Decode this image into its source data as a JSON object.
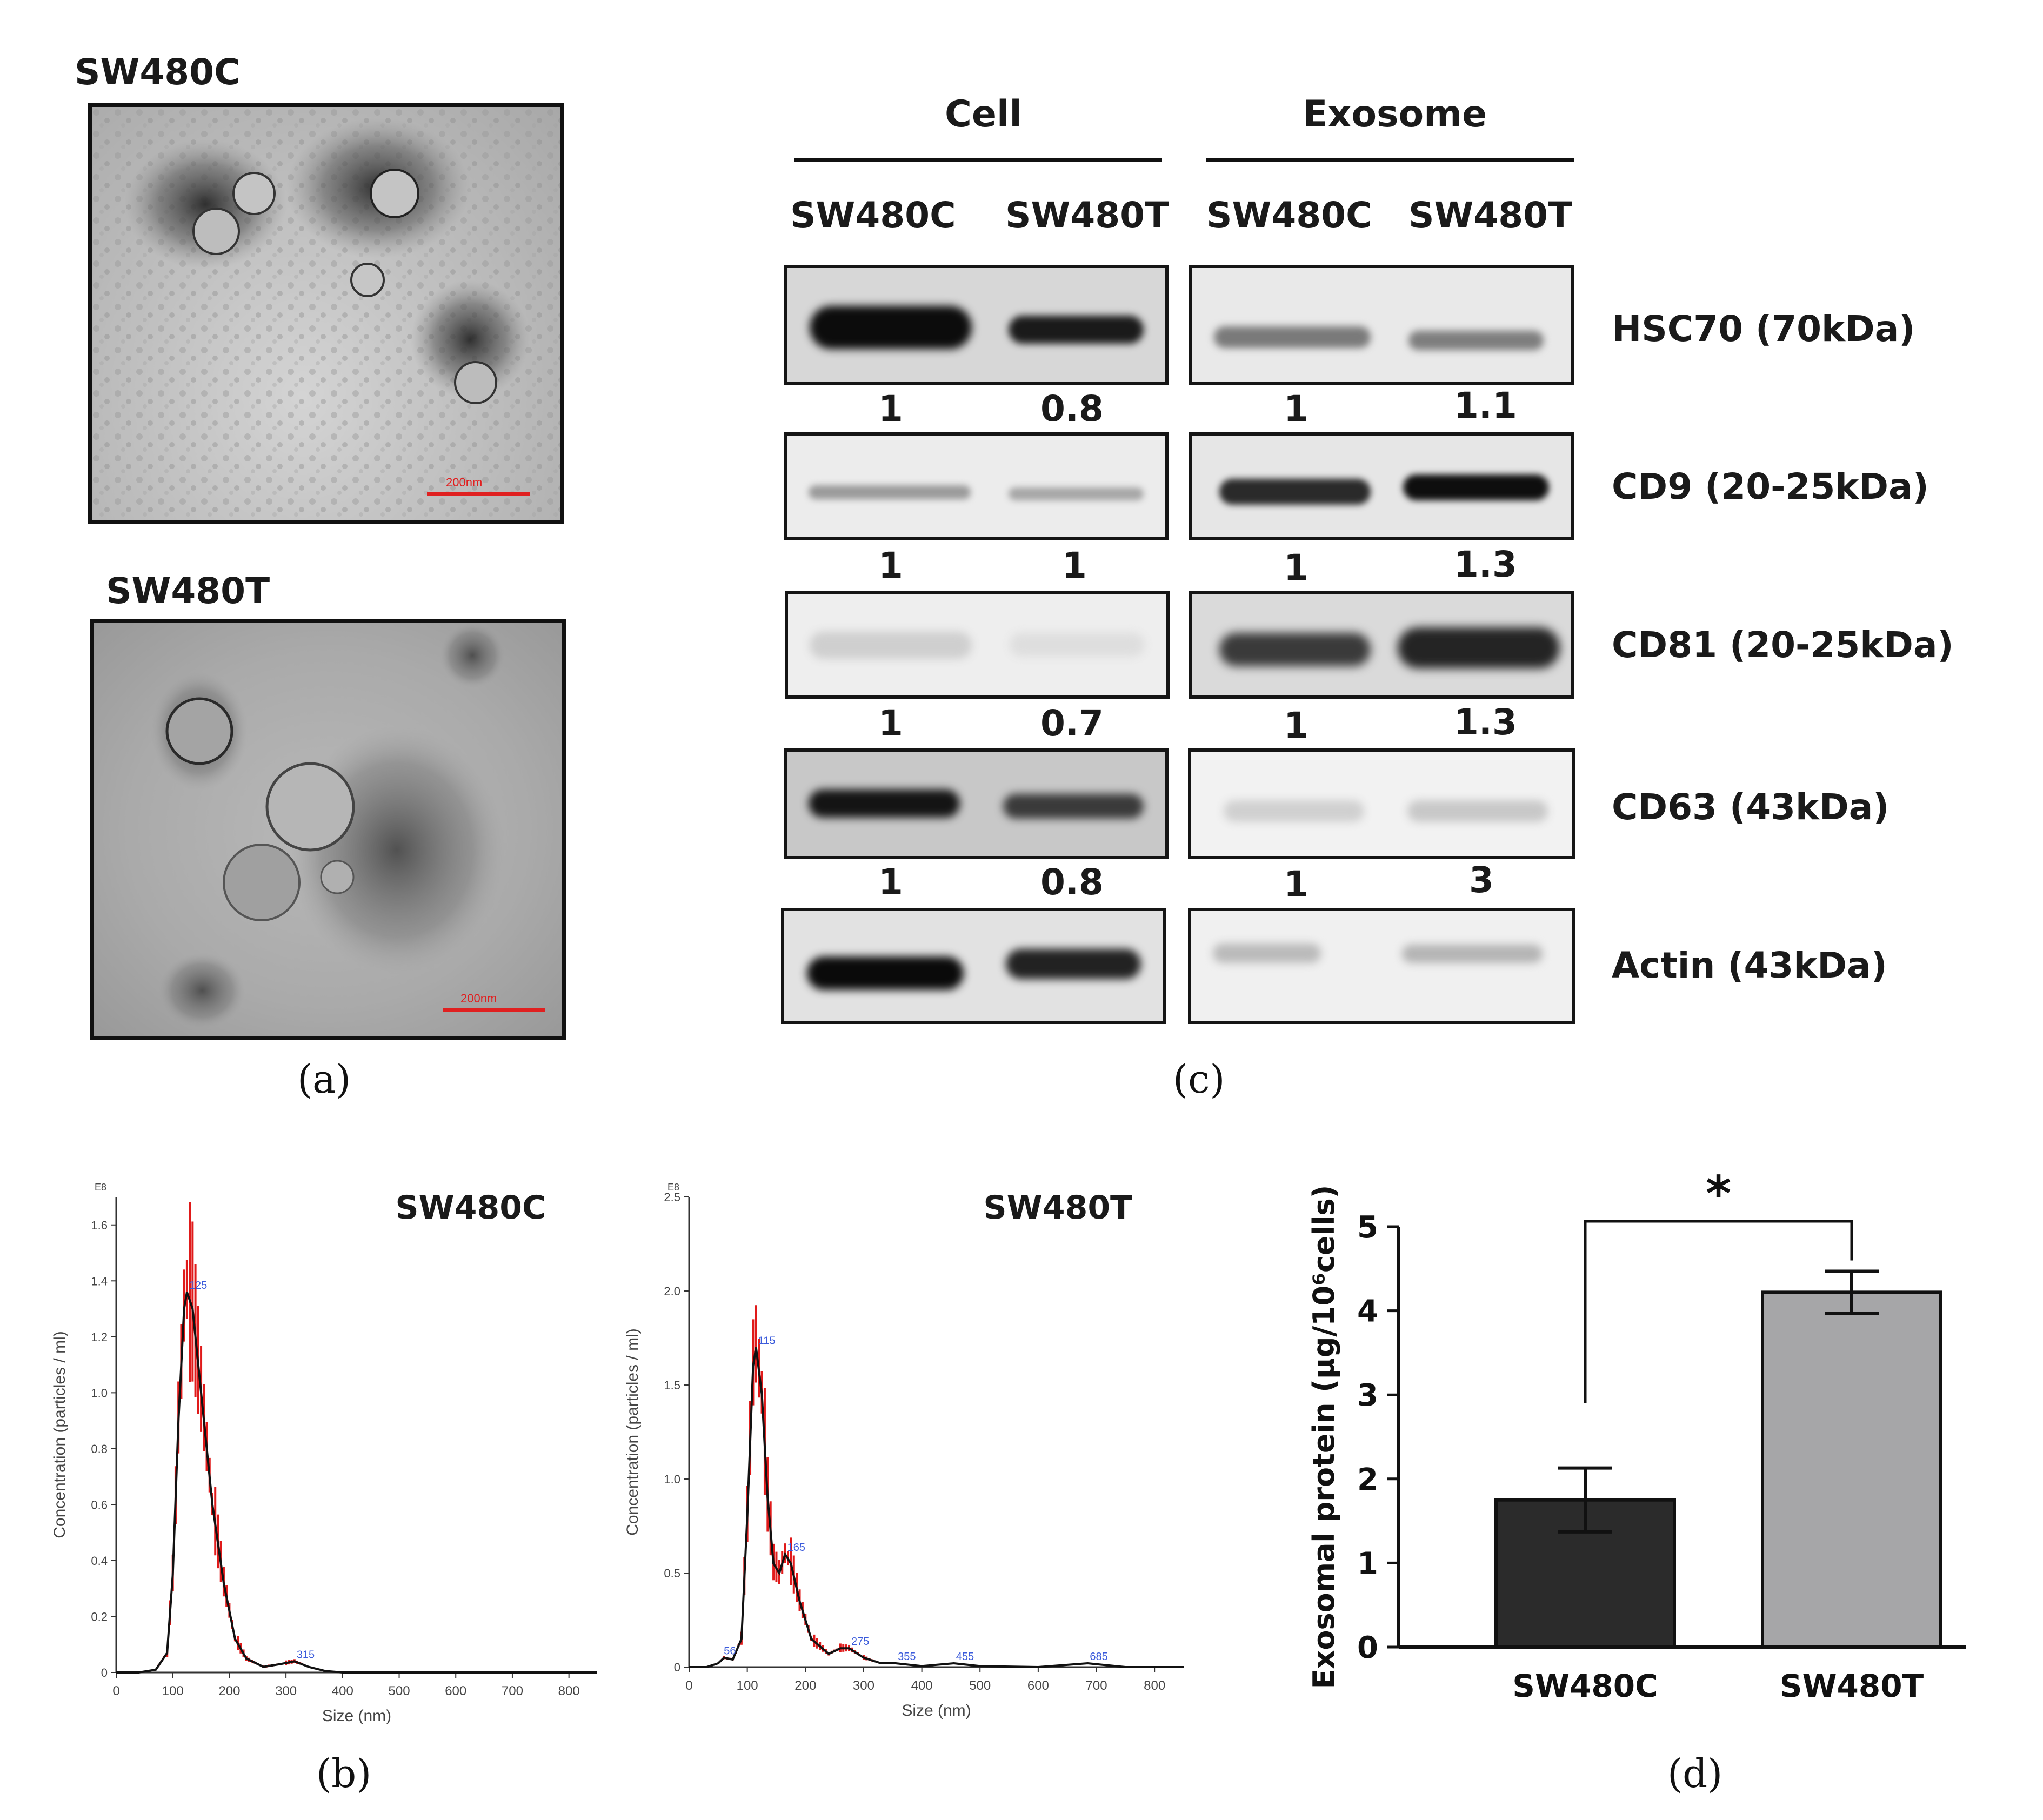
{
  "panel_labels": {
    "a": "(a)",
    "b": "(b)",
    "c": "(c)",
    "d": "(d)"
  },
  "panel_a": {
    "images": [
      {
        "title": "SW480C",
        "scale_bar_text": "200nm"
      },
      {
        "title": "SW480T",
        "scale_bar_text": "200nm"
      }
    ],
    "colors": {
      "scale_bar": "#e02020"
    }
  },
  "panel_b": {
    "charts": [
      {
        "title": "SW480C",
        "exponent": "E8",
        "xlabel": "Size (nm)",
        "ylabel": "Concentration (particles / ml)",
        "x_ticks": [
          0,
          100,
          200,
          300,
          400,
          500,
          600,
          700,
          800
        ],
        "y_ticks": [
          "0",
          "0.2",
          "0.4",
          "0.6",
          "0.8",
          "1.0",
          "1.2",
          "1.4",
          "1.6"
        ],
        "peak_labels": [
          {
            "x": 125,
            "y": 1.36,
            "text": "125"
          },
          {
            "x": 315,
            "y": 0.04,
            "text": "315"
          }
        ]
      },
      {
        "title": "SW480T",
        "exponent": "E8",
        "xlabel": "Size (nm)",
        "ylabel": "Concentration (particles / ml)",
        "x_ticks": [
          0,
          100,
          200,
          300,
          400,
          500,
          600,
          700,
          800
        ],
        "y_ticks": [
          "0",
          "0.5",
          "1.0",
          "1.5",
          "2.0",
          "2.5"
        ],
        "peak_labels": [
          {
            "x": 56,
            "y": 0.05,
            "text": "56"
          },
          {
            "x": 115,
            "y": 1.7,
            "text": "115"
          },
          {
            "x": 165,
            "y": 0.6,
            "text": "165"
          },
          {
            "x": 275,
            "y": 0.1,
            "text": "275"
          },
          {
            "x": 355,
            "y": 0.02,
            "text": "355"
          },
          {
            "x": 455,
            "y": 0.02,
            "text": "455"
          },
          {
            "x": 685,
            "y": 0.02,
            "text": "685"
          }
        ]
      }
    ]
  },
  "panel_c": {
    "group_headers": [
      "Cell",
      "Exosome"
    ],
    "lane_labels": [
      "SW480C",
      "SW480T",
      "SW480C",
      "SW480T"
    ],
    "bands": [
      {
        "name": "HSC70 (70kDa)",
        "ratios": [
          "1",
          "0.8",
          "1",
          "1.1"
        ]
      },
      {
        "name": "CD9 (20-25kDa)",
        "ratios": [
          "1",
          "1",
          "1",
          "1.3"
        ]
      },
      {
        "name": "CD81 (20-25kDa)",
        "ratios": [
          "1",
          "0.7",
          "1",
          "1.3"
        ]
      },
      {
        "name": "CD63 (43kDa)",
        "ratios": [
          "1",
          "0.8",
          "1",
          "3"
        ]
      },
      {
        "name": "Actin (43kDa)"
      }
    ]
  },
  "chart_data": [
    {
      "type": "line",
      "title": "SW480C",
      "xlabel": "Size (nm)",
      "ylabel": "Concentration (particles / ml)",
      "xlim": [
        0,
        850
      ],
      "ylim": [
        0,
        1.7
      ],
      "x": [
        0,
        40,
        70,
        90,
        100,
        110,
        120,
        125,
        135,
        150,
        170,
        190,
        210,
        230,
        260,
        290,
        315,
        340,
        370,
        400,
        500,
        600,
        700,
        800,
        850
      ],
      "series": [
        {
          "values": [
            0,
            0,
            0.01,
            0.07,
            0.35,
            0.9,
            1.3,
            1.36,
            1.3,
            1.0,
            0.6,
            0.32,
            0.12,
            0.05,
            0.02,
            0.03,
            0.04,
            0.02,
            0.005,
            0,
            0,
            0,
            0,
            0,
            0
          ]
        }
      ]
    },
    {
      "type": "line",
      "title": "SW480T",
      "xlabel": "Size (nm)",
      "ylabel": "Concentration (particles / ml)",
      "xlim": [
        0,
        850
      ],
      "ylim": [
        0,
        2.5
      ],
      "x": [
        0,
        30,
        50,
        60,
        75,
        90,
        100,
        110,
        115,
        125,
        135,
        145,
        155,
        165,
        175,
        190,
        210,
        240,
        260,
        275,
        300,
        330,
        355,
        400,
        455,
        500,
        600,
        685,
        750,
        800,
        850
      ],
      "series": [
        {
          "values": [
            0,
            0,
            0.02,
            0.05,
            0.04,
            0.15,
            0.8,
            1.6,
            1.7,
            1.45,
            0.9,
            0.55,
            0.5,
            0.6,
            0.55,
            0.35,
            0.15,
            0.07,
            0.1,
            0.1,
            0.05,
            0.02,
            0.02,
            0.005,
            0.02,
            0.005,
            0,
            0.02,
            0,
            0,
            0
          ]
        }
      ]
    },
    {
      "type": "bar",
      "xlabel": "",
      "ylabel": "Exosomal protein (μg/10⁶cells)",
      "categories": [
        "SW480C",
        "SW480T"
      ],
      "values": [
        1.75,
        4.22
      ],
      "errors": [
        0.38,
        0.25
      ],
      "ylim": [
        0,
        5
      ],
      "y_ticks": [
        "0",
        "1",
        "2",
        "3",
        "4",
        "5"
      ],
      "significance": "*",
      "colors": [
        "#2b2b2b",
        "#a6a6a8"
      ]
    }
  ]
}
